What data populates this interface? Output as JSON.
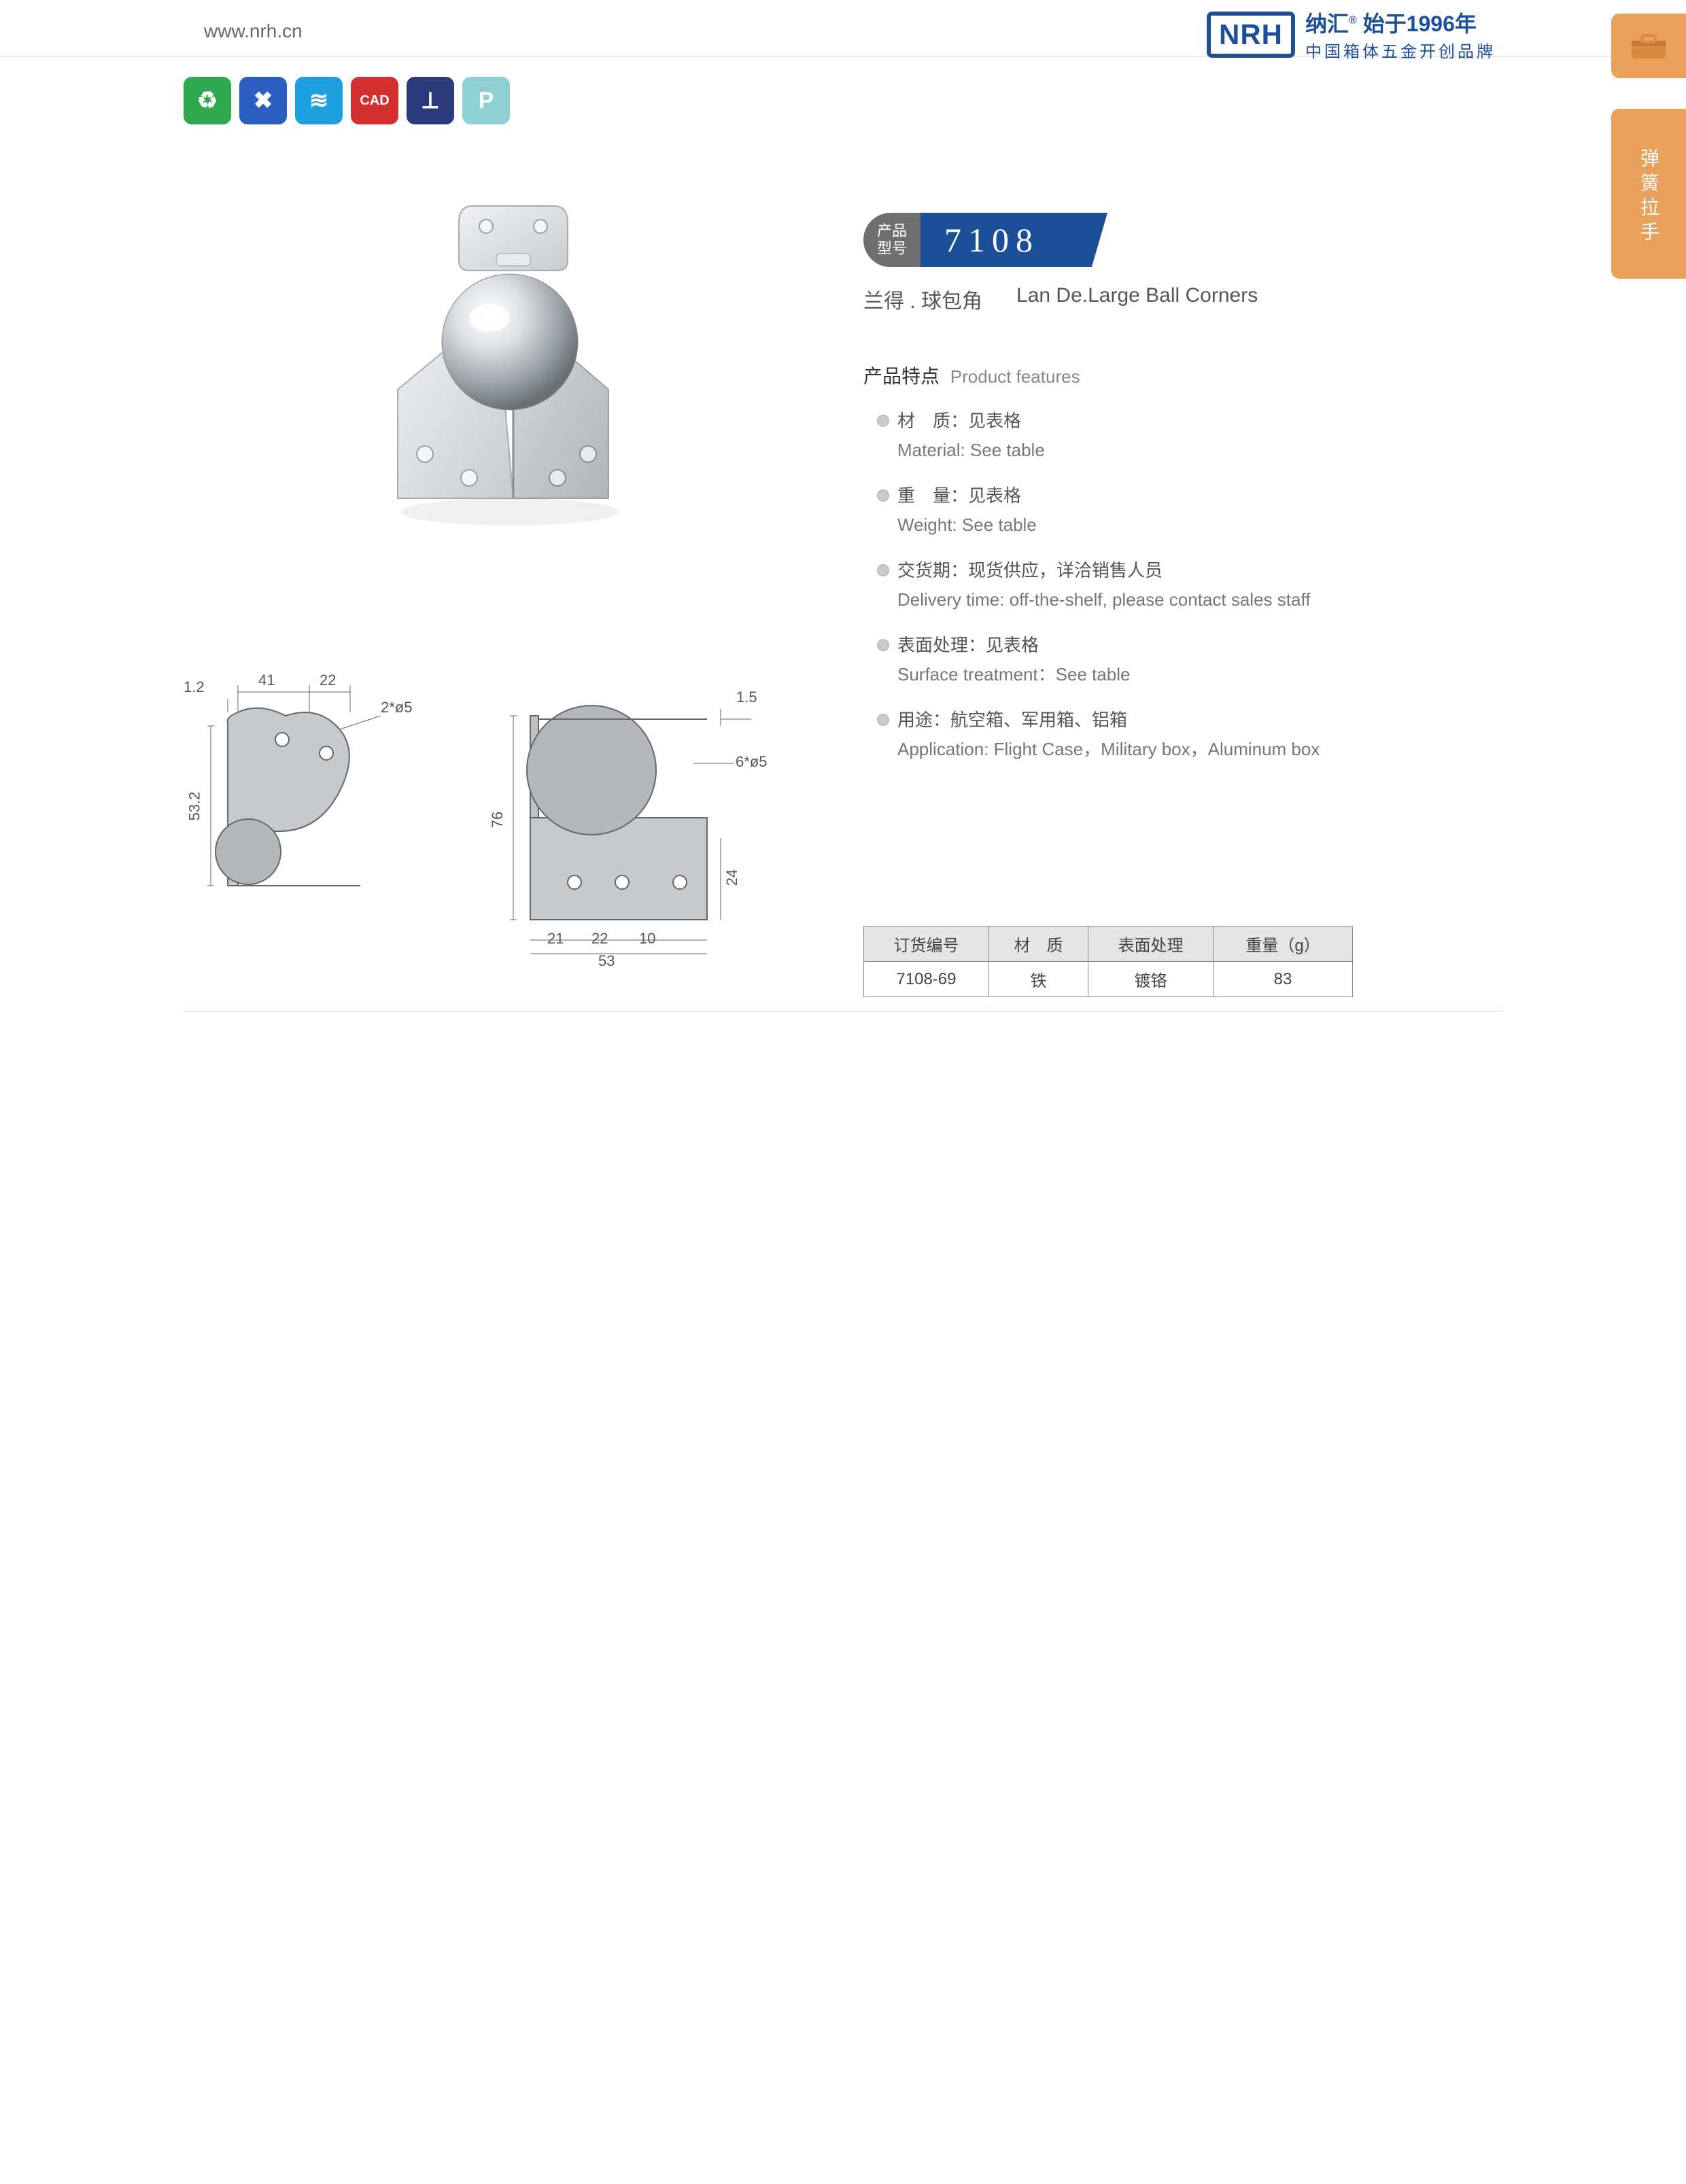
{
  "header": {
    "url": "www.nrh.cn",
    "brand_logo": "NRH",
    "brand_cn": "纳汇",
    "brand_since": "始于1996年",
    "brand_tagline": "中国箱体五金开创品牌"
  },
  "side_tabs": {
    "tab2_text": "弹簧拉手"
  },
  "icon_row": [
    {
      "name": "eco-icon",
      "bg": "#2fa84f",
      "glyph": "♻"
    },
    {
      "name": "tools-icon",
      "bg": "#2b5fbf",
      "glyph": "✖"
    },
    {
      "name": "spring-icon",
      "bg": "#1e9fe0",
      "glyph": "≋"
    },
    {
      "name": "cad-icon",
      "bg": "#d22f2f",
      "glyph": "CAD"
    },
    {
      "name": "screw-icon",
      "bg": "#2a3a7a",
      "glyph": "⟂"
    },
    {
      "name": "park-icon",
      "bg": "#8fd0d2",
      "glyph": "P"
    }
  ],
  "product": {
    "model_label_cn": "产品\n型号",
    "model_number": "7108",
    "subtitle_cn": "兰得 . 球包角",
    "subtitle_en": "Lan De.Large Ball Corners",
    "features_title_cn": "产品特点",
    "features_title_en": "Product features",
    "features": [
      {
        "cn": "材　质：见表格",
        "en": "Material: See table"
      },
      {
        "cn": "重　量：见表格",
        "en": "Weight: See table"
      },
      {
        "cn": "交货期：现货供应，详洽销售人员",
        "en": "Delivery time: off-the-shelf, please contact sales staff"
      },
      {
        "cn": "表面处理：见表格",
        "en": "Surface treatment：See table"
      },
      {
        "cn": "用途：航空箱、军用箱、铝箱",
        "en": "Application: Flight Case，Military box，Aluminum box"
      }
    ]
  },
  "drawings": {
    "left": {
      "dims": {
        "t": "1.2",
        "a": "41",
        "b": "22",
        "hole": "2*ø5",
        "h": "53.2"
      }
    },
    "right": {
      "dims": {
        "t": "1.5",
        "hole": "6*ø5",
        "h": "76",
        "s1": "21",
        "s2": "22",
        "s3": "10",
        "w": "53",
        "d": "24"
      }
    }
  },
  "spec_table": {
    "headers": [
      "订货编号",
      "材　质",
      "表面处理",
      "重量（g）"
    ],
    "rows": [
      [
        "7108-69",
        "铁",
        "镀铬",
        "83"
      ]
    ]
  },
  "colors": {
    "brand": "#1c4f99",
    "accent_orange": "#e8a05a",
    "steel_light": "#e2e4e6",
    "steel_mid": "#b8bcc0",
    "steel_dark": "#8a8e92"
  }
}
